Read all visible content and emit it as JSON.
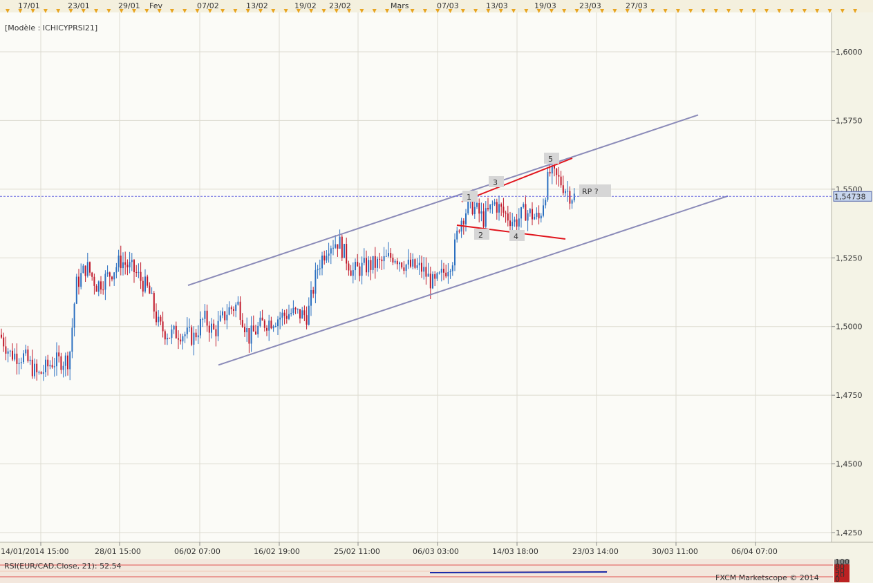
{
  "model_label": "[Modèle : ICHICYPRSI21]",
  "top_dates": [
    "17/01",
    "23/01",
    "29/01",
    "Fev",
    "07/02",
    "13/02",
    "19/02",
    "23/02",
    "Mars",
    "07/03",
    "13/03",
    "19/03",
    "23/03",
    "27/03"
  ],
  "bottom_dates": [
    "14/01/2014 15:00",
    "28/01 15:00",
    "06/02 07:00",
    "16/02 19:00",
    "25/02 11:00",
    "06/03 03:00",
    "14/03 18:00",
    "23/03 14:00",
    "30/03 11:00",
    "06/04 07:00"
  ],
  "price_axis": [
    "1,6000",
    "1,5750",
    "1,5500",
    "1,5250",
    "1,5000",
    "1,4750",
    "1,4500",
    "1,4250"
  ],
  "current_price": "1,54738",
  "wave_labels": [
    "1",
    "2",
    "3",
    "4",
    "5"
  ],
  "annotation": "RP ?",
  "indicator_label": "RSI(EUR/CAD.Close, 21): 52.54",
  "indicator_scale": [
    "100",
    "80",
    "50",
    "20",
    "0"
  ],
  "copyright": "FXCM Marketscope © 2014",
  "colors": {
    "up": "#2a6fc0",
    "down": "#c0182a",
    "channel": "#8a8ab8",
    "wave_line": "#e0141c"
  },
  "chart_data": {
    "type": "candlestick",
    "title": "",
    "ylim": [
      1.425,
      1.625
    ],
    "y_ticks": [
      1.6,
      1.575,
      1.55,
      1.525,
      1.5,
      1.475,
      1.45,
      1.425
    ],
    "last_price": 1.54738,
    "x_range": [
      "14/01/2014",
      "06/04/2014"
    ],
    "grid": true,
    "path_approx": [
      [
        0,
        1.497
      ],
      [
        15,
        1.49
      ],
      [
        35,
        1.489
      ],
      [
        55,
        1.482
      ],
      [
        75,
        1.487
      ],
      [
        100,
        1.488
      ],
      [
        110,
        1.515
      ],
      [
        125,
        1.522
      ],
      [
        140,
        1.515
      ],
      [
        155,
        1.518
      ],
      [
        175,
        1.524
      ],
      [
        195,
        1.52
      ],
      [
        215,
        1.513
      ],
      [
        230,
        1.5
      ],
      [
        245,
        1.497
      ],
      [
        260,
        1.498
      ],
      [
        280,
        1.496
      ],
      [
        295,
        1.503
      ],
      [
        310,
        1.498
      ],
      [
        330,
        1.506
      ],
      [
        345,
        1.508
      ],
      [
        360,
        1.496
      ],
      [
        380,
        1.501
      ],
      [
        400,
        1.503
      ],
      [
        420,
        1.505
      ],
      [
        445,
        1.504
      ],
      [
        460,
        1.522
      ],
      [
        475,
        1.53
      ],
      [
        490,
        1.531
      ],
      [
        510,
        1.52
      ],
      [
        530,
        1.522
      ],
      [
        550,
        1.523
      ],
      [
        570,
        1.526
      ],
      [
        590,
        1.522
      ],
      [
        610,
        1.521
      ],
      [
        628,
        1.515
      ],
      [
        640,
        1.519
      ],
      [
        655,
        1.525
      ],
      [
        665,
        1.538
      ],
      [
        680,
        1.545
      ],
      [
        700,
        1.539
      ],
      [
        715,
        1.545
      ],
      [
        730,
        1.541
      ],
      [
        745,
        1.538
      ],
      [
        760,
        1.542
      ],
      [
        780,
        1.539
      ],
      [
        795,
        1.556
      ],
      [
        810,
        1.553
      ],
      [
        825,
        1.548
      ],
      [
        833,
        1.547
      ]
    ],
    "channel_upper": [
      [
        272,
        1.515
      ],
      [
        1010,
        1.577
      ]
    ],
    "channel_lower": [
      [
        316,
        1.486
      ],
      [
        1053,
        1.5475
      ]
    ]
  }
}
